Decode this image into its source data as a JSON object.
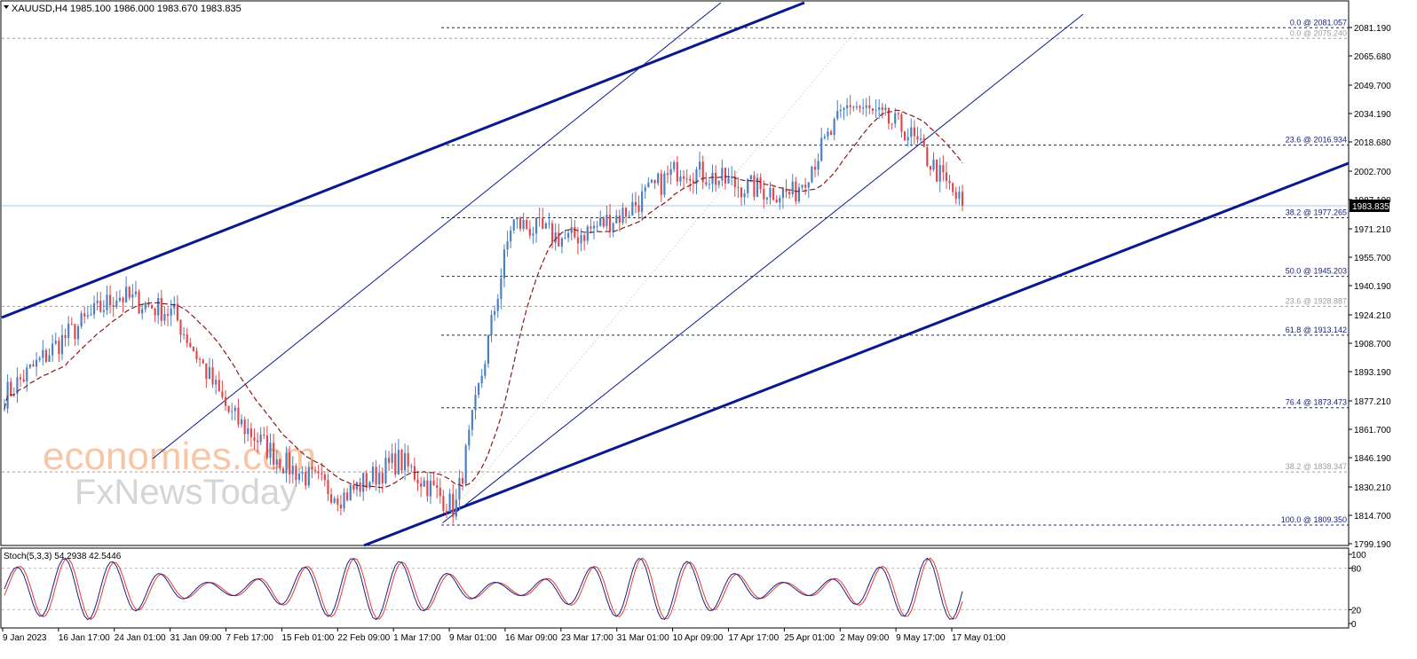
{
  "header": {
    "symbol_line": "XAUUSD,H4  1985.100 1986.000 1983.670 1983.835"
  },
  "watermark": {
    "line1": "economies.com",
    "line2": "FxNewsToday"
  },
  "price_axis": {
    "ticks": [
      "2081.190",
      "2065.680",
      "2049.700",
      "2034.190",
      "2018.680",
      "2002.700",
      "1987.190",
      "1971.210",
      "1955.700",
      "1940.190",
      "1924.210",
      "1908.700",
      "1893.190",
      "1877.210",
      "1861.700",
      "1846.190",
      "1830.210",
      "1814.700",
      "1799.190"
    ],
    "current_price": "1983.835"
  },
  "fib_levels_primary": [
    {
      "label": "0.0 @ 2081.057",
      "price": 2081.057
    },
    {
      "label": "23.6 @ 2016.934",
      "price": 2016.934
    },
    {
      "label": "38.2 @ 1977.265",
      "price": 1977.265
    },
    {
      "label": "50.0 @ 1945.203",
      "price": 1945.203
    },
    {
      "label": "61.8 @ 1913.142",
      "price": 1913.142
    },
    {
      "label": "76.4 @ 1873.473",
      "price": 1873.473
    },
    {
      "label": "100.0 @ 1809.350",
      "price": 1809.35
    }
  ],
  "fib_levels_secondary": [
    {
      "label": "0.0 @ 2075.240",
      "price": 2075.24
    },
    {
      "label": "23.6 @ 1928.887",
      "price": 1928.887
    },
    {
      "label": "38.2 @ 1838.347",
      "price": 1838.347
    }
  ],
  "time_axis": [
    "9 Jan 2023",
    "16 Jan 17:00",
    "24 Jan 01:00",
    "31 Jan 09:00",
    "7 Feb 17:00",
    "15 Feb 01:00",
    "22 Feb 09:00",
    "1 Mar 17:00",
    "9 Mar 01:00",
    "16 Mar 09:00",
    "23 Mar 17:00",
    "31 Mar 01:00",
    "10 Apr 09:00",
    "17 Apr 17:00",
    "25 Apr 01:00",
    "2 May 09:00",
    "9 May 17:00",
    "17 May 01:00"
  ],
  "stochastic": {
    "label": "Stoch(5,3,3) 54.2938 42.5446",
    "ticks": [
      "100",
      "80",
      "20",
      "0"
    ]
  },
  "colors": {
    "bull_candle": "#4a7fc1",
    "bear_candle": "#e0474c",
    "ma_line": "#8b1a1a",
    "trendline": "#0a1a8c",
    "fib_primary": "#1a237e",
    "fib_secondary": "#9e9e9e",
    "stoch_main": "#1a237e",
    "stoch_signal": "#e53935",
    "price_marker": "#000000"
  },
  "chart_data": {
    "type": "candlestick",
    "symbol": "XAUUSD",
    "timeframe": "H4",
    "ohlc_last": {
      "open": 1985.1,
      "high": 1986.0,
      "low": 1983.67,
      "close": 1983.835
    },
    "ylim": [
      1795.0,
      2090.0
    ],
    "anchors": [
      {
        "x": "9 Jan 2023",
        "y": 1880
      },
      {
        "x": "16 Jan 17:00",
        "y": 1910
      },
      {
        "x": "24 Jan 01:00",
        "y": 1935
      },
      {
        "x": "31 Jan 09:00",
        "y": 1925
      },
      {
        "x": "7 Feb 17:00",
        "y": 1870
      },
      {
        "x": "15 Feb 01:00",
        "y": 1842
      },
      {
        "x": "22 Feb 09:00",
        "y": 1825
      },
      {
        "x": "1 Mar 17:00",
        "y": 1845
      },
      {
        "x": "9 Mar 01:00",
        "y": 1818
      },
      {
        "x": "16 Mar 09:00",
        "y": 1975
      },
      {
        "x": "23 Mar 17:00",
        "y": 1965
      },
      {
        "x": "31 Mar 01:00",
        "y": 1980
      },
      {
        "x": "10 Apr 09:00",
        "y": 2005
      },
      {
        "x": "17 Apr 17:00",
        "y": 1995
      },
      {
        "x": "25 Apr 01:00",
        "y": 1990
      },
      {
        "x": "2 May 09:00",
        "y": 2040
      },
      {
        "x": "9 May 17:00",
        "y": 2025
      },
      {
        "x": "17 May 01:00",
        "y": 1983.835
      }
    ],
    "xlabel": "",
    "ylabel": "",
    "grid": false
  }
}
